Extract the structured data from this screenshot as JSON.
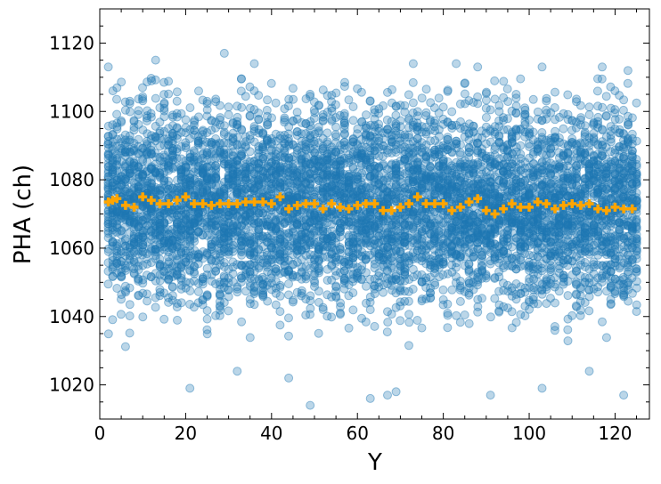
{
  "chart_data": {
    "type": "scatter",
    "title": "",
    "xlabel": "Y",
    "ylabel": "PHA (ch)",
    "xlim": [
      0,
      128
    ],
    "ylim": [
      1010,
      1130
    ],
    "x_ticks": [
      0,
      20,
      40,
      60,
      80,
      100,
      120
    ],
    "y_ticks": [
      1020,
      1040,
      1060,
      1080,
      1100,
      1120
    ],
    "grid": false,
    "colors": {
      "scatter": "#1f77b4",
      "mean": "#ffa500"
    },
    "series": [
      {
        "kind": "scatter",
        "marker": "circle",
        "alpha": 0.3,
        "points_per_column": 50,
        "x_range": [
          2,
          125
        ],
        "y_center": 1073,
        "y_spread": 20,
        "outliers": [
          [
            2,
            1113
          ],
          [
            13,
            1115
          ],
          [
            29,
            1117
          ],
          [
            36,
            1114
          ],
          [
            73,
            1114
          ],
          [
            83,
            1114
          ],
          [
            88,
            1113
          ],
          [
            103,
            1113
          ],
          [
            117,
            1113
          ],
          [
            123,
            1112
          ],
          [
            49,
            1014
          ],
          [
            63,
            1016
          ],
          [
            67,
            1017
          ],
          [
            69,
            1018
          ],
          [
            91,
            1017
          ],
          [
            122,
            1017
          ],
          [
            21,
            1019
          ],
          [
            103,
            1019
          ],
          [
            32,
            1024
          ],
          [
            44,
            1022
          ],
          [
            114,
            1024
          ]
        ]
      },
      {
        "kind": "mean",
        "marker": "plus",
        "x": [
          2,
          3,
          4,
          6,
          8,
          10,
          12,
          14,
          16,
          18,
          20,
          22,
          24,
          26,
          28,
          30,
          32,
          34,
          36,
          38,
          40,
          42,
          44,
          46,
          48,
          50,
          52,
          54,
          56,
          58,
          60,
          62,
          64,
          66,
          68,
          70,
          72,
          74,
          76,
          78,
          80,
          82,
          84,
          86,
          88,
          90,
          92,
          94,
          96,
          98,
          100,
          102,
          104,
          106,
          108,
          110,
          112,
          114,
          116,
          118,
          120,
          122,
          124
        ],
        "y": [
          1073.5,
          1074,
          1074.5,
          1072.5,
          1072,
          1075,
          1074,
          1073,
          1073,
          1074,
          1075,
          1073,
          1073,
          1072.5,
          1073,
          1073,
          1073,
          1073.5,
          1073.5,
          1073.5,
          1073,
          1075,
          1071.5,
          1072.5,
          1073,
          1073,
          1071.5,
          1073,
          1072,
          1071.5,
          1072.5,
          1073,
          1073,
          1071,
          1071,
          1072,
          1073,
          1075,
          1073,
          1073,
          1073,
          1071,
          1072,
          1073.5,
          1074.5,
          1071,
          1070,
          1071.5,
          1073,
          1072,
          1072,
          1073.5,
          1073,
          1071.5,
          1072.5,
          1073,
          1072.5,
          1073,
          1071.5,
          1071,
          1072,
          1071.5,
          1071.5
        ]
      }
    ]
  }
}
